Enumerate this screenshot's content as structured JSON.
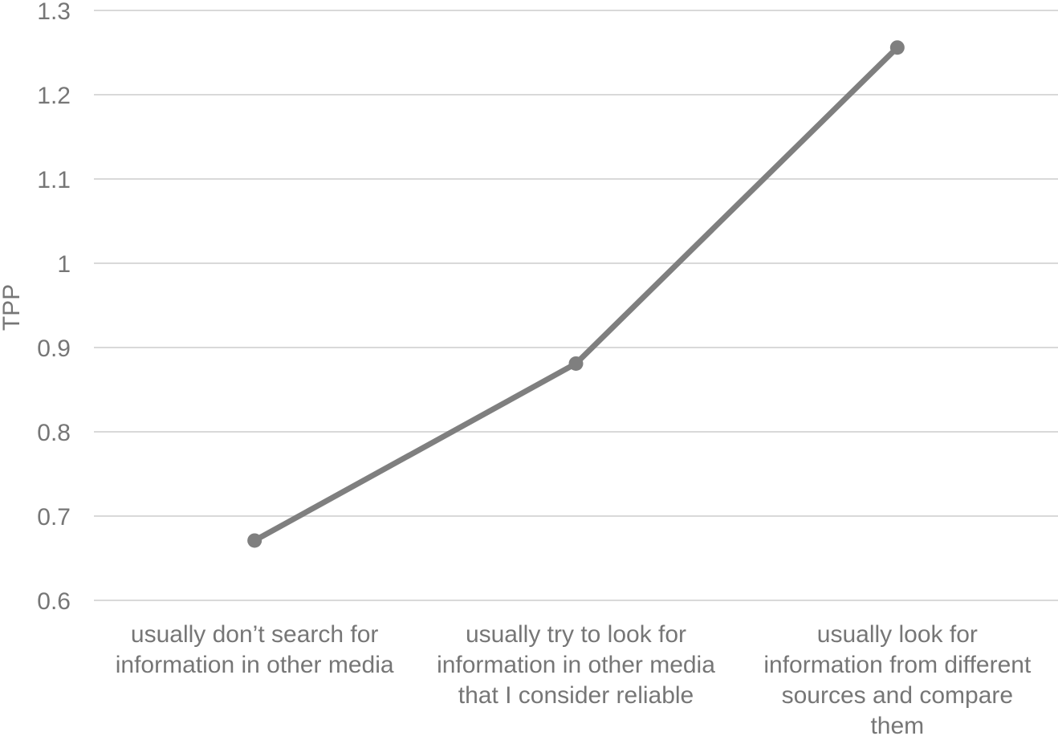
{
  "chart_data": {
    "type": "line",
    "title": "",
    "xlabel": "",
    "ylabel": "TPP",
    "categories": [
      [
        "usually don’t search for",
        "information in other media"
      ],
      [
        "usually try to look for",
        "information in other media",
        "that I consider reliable"
      ],
      [
        "usually look for",
        "information from different",
        "sources and compare",
        "them"
      ]
    ],
    "series": [
      {
        "values": [
          0.671,
          0.881,
          1.256
        ]
      }
    ],
    "ylim": [
      0.6,
      1.3
    ],
    "yticks": [
      "0.6",
      "0.7",
      "0.8",
      "0.9",
      "1",
      "1.1",
      "1.2",
      "1.3"
    ],
    "grid": true,
    "line_color": "#7f7f7f",
    "grid_color": "#d9d9d9",
    "text_color": "#767676"
  }
}
